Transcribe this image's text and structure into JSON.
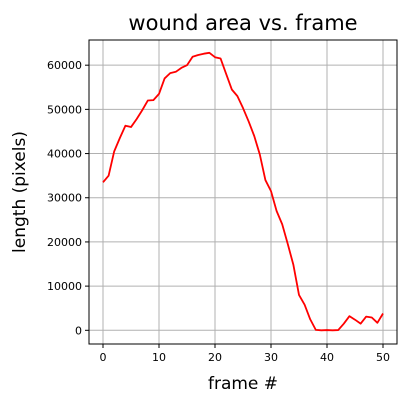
{
  "chart_data": {
    "type": "line",
    "title": "wound area vs. frame",
    "xlabel": "frame #",
    "ylabel": "length (pixels)",
    "xlim": [
      -2.5,
      52.5
    ],
    "ylim": [
      -3100,
      65700
    ],
    "grid": true,
    "xticks": [
      0,
      10,
      20,
      30,
      40,
      50
    ],
    "yticks": [
      0,
      10000,
      20000,
      30000,
      40000,
      50000,
      60000
    ],
    "series": [
      {
        "color": "#ff0000",
        "x": [
          0,
          1,
          2,
          3,
          4,
          5,
          6,
          7,
          8,
          9,
          10,
          11,
          12,
          13,
          14,
          15,
          16,
          17,
          18,
          19,
          20,
          21,
          22,
          23,
          24,
          25,
          26,
          27,
          28,
          29,
          30,
          31,
          32,
          33,
          34,
          35,
          36,
          37,
          38,
          39,
          40,
          41,
          42,
          43,
          44,
          45,
          46,
          47,
          48,
          49,
          50
        ],
        "values": [
          33500,
          35000,
          40500,
          43500,
          46300,
          46000,
          47800,
          49800,
          52000,
          52100,
          53500,
          57000,
          58200,
          58500,
          59400,
          60000,
          61900,
          62300,
          62600,
          62800,
          61800,
          61500,
          58000,
          54500,
          53000,
          50300,
          47300,
          44000,
          39800,
          34000,
          31500,
          27000,
          24000,
          19500,
          14800,
          8000,
          5800,
          2500,
          100,
          0,
          50,
          0,
          50,
          1500,
          3200,
          2400,
          1500,
          3100,
          2900,
          1700,
          3800
        ]
      }
    ]
  }
}
